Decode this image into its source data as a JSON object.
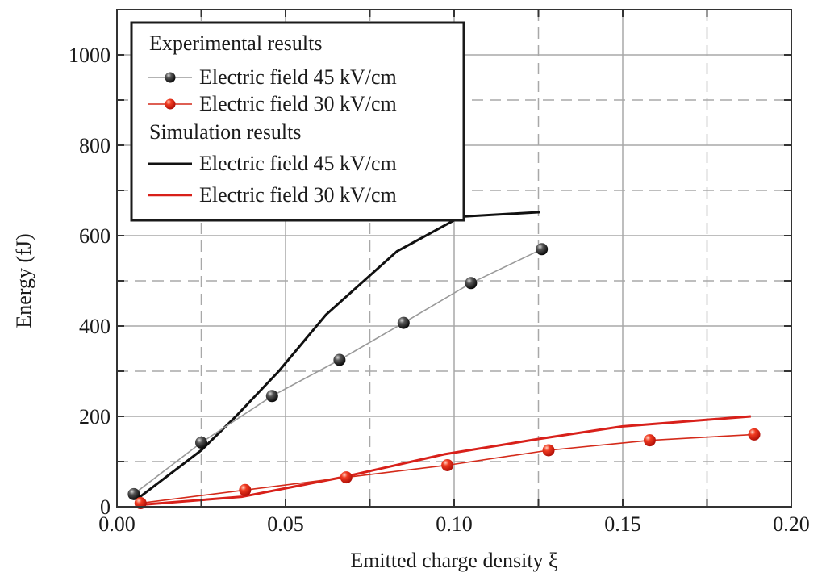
{
  "chart_data": {
    "type": "line",
    "title": "",
    "xlabel": "Emitted charge density ξ",
    "ylabel": "Energy (fJ)",
    "xlim": [
      0.0,
      0.2
    ],
    "ylim": [
      0,
      1100
    ],
    "x_ticks": [
      0.0,
      0.05,
      0.1,
      0.15,
      0.2
    ],
    "x_tick_labels": [
      "0.00",
      "0.05",
      "0.10",
      "0.15",
      "0.20"
    ],
    "x_minor_ticks": [
      0.025,
      0.075,
      0.125,
      0.175
    ],
    "y_ticks": [
      0,
      200,
      400,
      600,
      800,
      1000
    ],
    "y_tick_labels": [
      "0",
      "200",
      "400",
      "600",
      "800",
      "1000"
    ],
    "y_minor_ticks": [
      100,
      300,
      500,
      700,
      900
    ],
    "grid": true,
    "legend": {
      "placement": "top-left",
      "groups": [
        {
          "heading": "Experimental results",
          "entries": [
            "Electric field 45 kV/cm",
            "Electric field 30 kV/cm"
          ]
        },
        {
          "heading": "Simulation results",
          "entries": [
            "Electric field 45 kV/cm",
            "Electric field 30 kV/cm"
          ]
        }
      ]
    },
    "series": [
      {
        "name": "Experimental results – Electric field 45 kV/cm",
        "style": "markers+line",
        "color": "#1a1a1a",
        "line_color": "#9a9a9a",
        "x": [
          0.005,
          0.025,
          0.046,
          0.066,
          0.085,
          0.105,
          0.126
        ],
        "y": [
          28,
          142,
          245,
          325,
          407,
          495,
          570
        ]
      },
      {
        "name": "Experimental results – Electric field 30 kV/cm",
        "style": "markers+line",
        "color": "#e02010",
        "line_color": "#d42a1a",
        "x": [
          0.007,
          0.038,
          0.068,
          0.098,
          0.128,
          0.158,
          0.189
        ],
        "y": [
          8,
          37,
          65,
          92,
          125,
          147,
          160
        ]
      },
      {
        "name": "Simulation results – Electric field 45 kV/cm",
        "style": "line",
        "color": "#111111",
        "x": [
          0.0065,
          0.025,
          0.035,
          0.048,
          0.062,
          0.083,
          0.102,
          0.1255
        ],
        "y": [
          20,
          125,
          198,
          300,
          425,
          565,
          642,
          652
        ]
      },
      {
        "name": "Simulation results – Electric field 30 kV/cm",
        "style": "line",
        "color": "#d8201a",
        "x": [
          0.0065,
          0.037,
          0.066,
          0.097,
          0.125,
          0.15,
          0.188
        ],
        "y": [
          4,
          22,
          64,
          116,
          150,
          178,
          200
        ]
      }
    ]
  }
}
